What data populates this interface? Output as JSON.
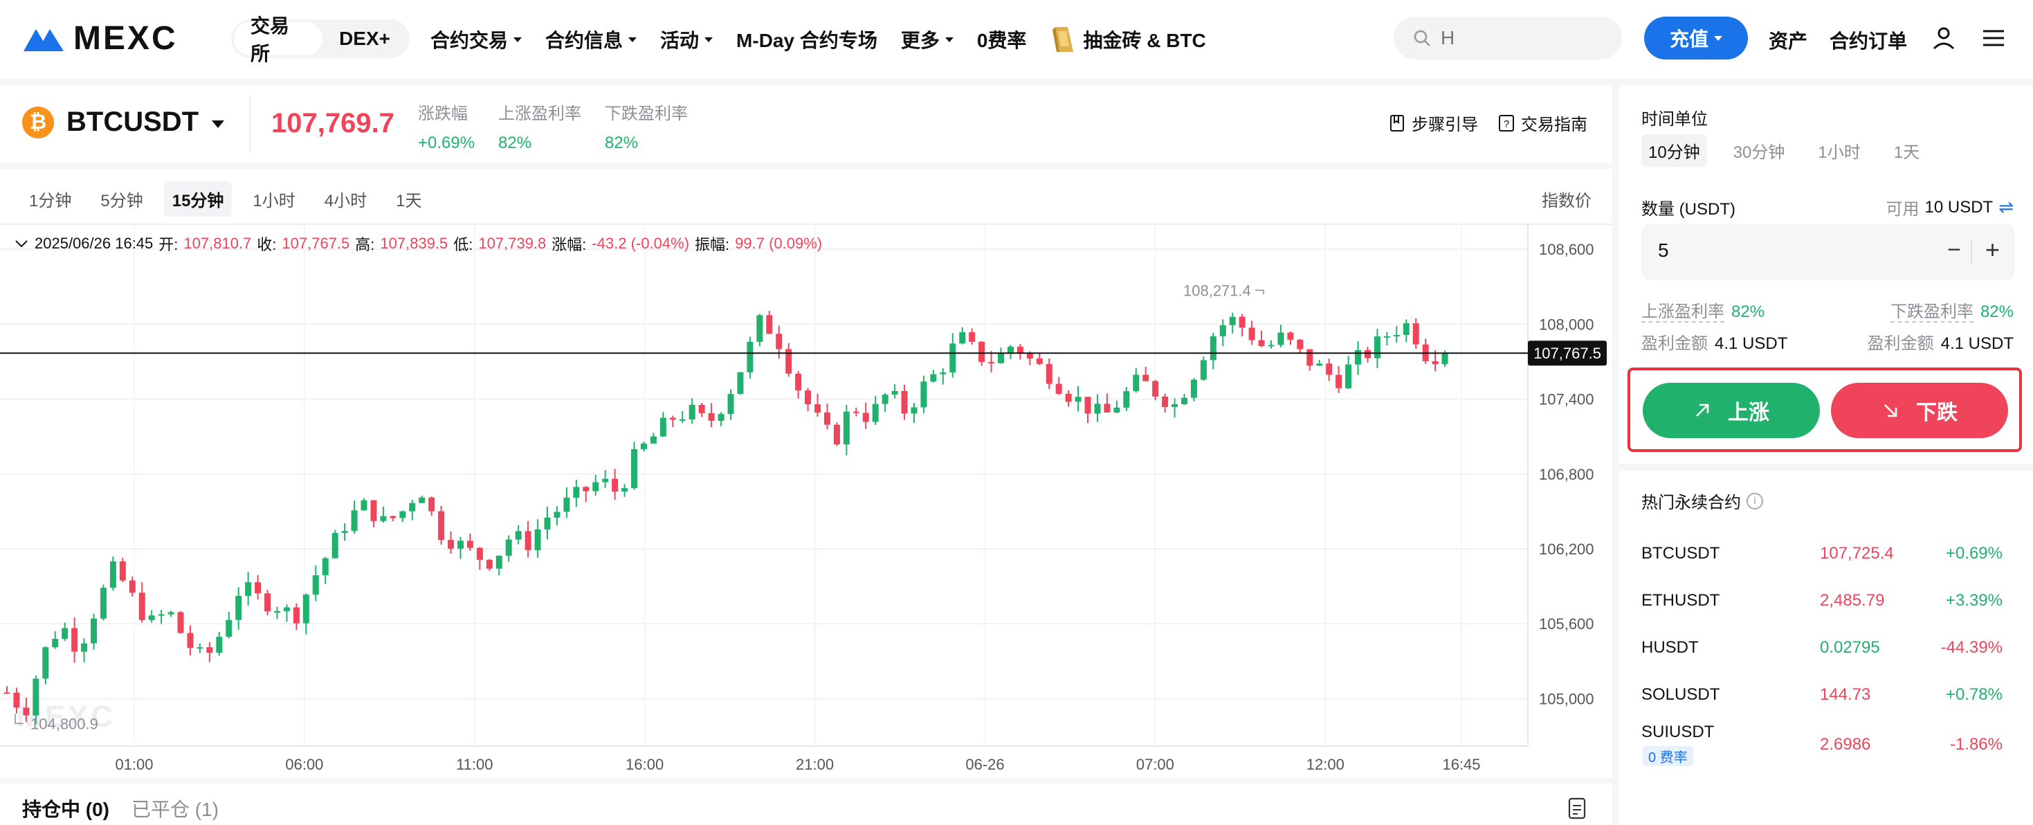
{
  "header": {
    "logo_text": "MEXC",
    "segments": [
      {
        "label": "交易所",
        "active": true
      },
      {
        "label": "DEX+",
        "active": false
      }
    ],
    "nav": [
      {
        "label": "合约交易",
        "dropdown": true
      },
      {
        "label": "合约信息",
        "dropdown": true
      },
      {
        "label": "活动",
        "dropdown": true
      },
      {
        "label": "M-Day 合约专场",
        "dropdown": false
      },
      {
        "label": "更多",
        "dropdown": true
      },
      {
        "label": "0费率",
        "dropdown": false
      },
      {
        "label": "抽金砖 & BTC",
        "dropdown": false,
        "icon": "gold-bar-icon"
      }
    ],
    "search_placeholder": "H",
    "deposit_label": "充值",
    "assets_label": "资产",
    "orders_label": "合约订单"
  },
  "symbol": {
    "name": "BTCUSDT",
    "coin_glyph": "₿",
    "price": "107,769.7",
    "stats": [
      {
        "label": "涨跌幅",
        "value": "+0.69%"
      },
      {
        "label": "上涨盈利率",
        "value": "82%"
      },
      {
        "label": "下跌盈利率",
        "value": "82%"
      }
    ],
    "guide_label": "步骤引导",
    "trade_guide_label": "交易指南"
  },
  "chart": {
    "intervals": [
      {
        "label": "1分钟",
        "active": false
      },
      {
        "label": "5分钟",
        "active": false
      },
      {
        "label": "15分钟",
        "active": true
      },
      {
        "label": "1小时",
        "active": false
      },
      {
        "label": "4小时",
        "active": false
      },
      {
        "label": "1天",
        "active": false
      }
    ],
    "index_price_label": "指数价",
    "ohlc": {
      "date": "2025/06/26 16:45",
      "open_label": "开:",
      "open": "107,810.7",
      "close_label": "收:",
      "close": "107,767.5",
      "high_label": "高:",
      "high": "107,839.5",
      "low_label": "低:",
      "low": "107,739.8",
      "change_label": "涨幅:",
      "change": "-43.2 (-0.04%)",
      "amp_label": "振幅:",
      "amp": "99.7 (0.09%)"
    },
    "watermark": "MEXC"
  },
  "chart_data": {
    "type": "candlestick",
    "y_ticks": [
      "108,600",
      "108,000",
      "107,400",
      "106,800",
      "106,200",
      "105,600",
      "105,000"
    ],
    "y_tick_values": [
      108600,
      108000,
      107400,
      106800,
      106200,
      105600,
      105000
    ],
    "ylim": [
      104620,
      108800
    ],
    "x_ticks": [
      "01:00",
      "06:00",
      "11:00",
      "16:00",
      "21:00",
      "06-26",
      "07:00",
      "12:00",
      "16:45"
    ],
    "current_price": "107,767.5",
    "current_price_value": 107767.5,
    "high_annotation": "108,271.4",
    "high_value": 108271.4,
    "low_annotation": "104,800.9",
    "low_value": 104800.9,
    "close_path": [
      105050,
      104900,
      105350,
      105600,
      105400,
      105750,
      106050,
      105800,
      105600,
      105700,
      105450,
      105300,
      105550,
      105900,
      105800,
      105750,
      105650,
      105950,
      106200,
      106450,
      106550,
      106400,
      106500,
      106700,
      106350,
      106250,
      106150,
      106100,
      106300,
      106250,
      106450,
      106550,
      106650,
      106750,
      106650,
      106950,
      107100,
      107250,
      107300,
      107200,
      107400,
      107700,
      108050,
      107850,
      107500,
      107250,
      107050,
      107350,
      107250,
      107450,
      107300,
      107500,
      107650,
      107900,
      107750,
      107700,
      107850,
      107700,
      107600,
      107450,
      107350,
      107250,
      107400,
      107550,
      107450,
      107350,
      107600,
      107900,
      108050,
      107950,
      107800,
      107900,
      107750,
      107650,
      107550,
      107700,
      107800,
      107950,
      108000,
      107750,
      107767.5
    ],
    "candle_count": 150
  },
  "positions": {
    "tabs": [
      {
        "label": "持仓中 (0)",
        "active": true
      },
      {
        "label": "已平仓 (1)",
        "active": false
      }
    ]
  },
  "panel": {
    "time_unit_label": "时间单位",
    "time_units": [
      {
        "label": "10分钟",
        "active": true
      },
      {
        "label": "30分钟",
        "active": false
      },
      {
        "label": "1小时",
        "active": false
      },
      {
        "label": "1天",
        "active": false
      }
    ],
    "qty_label": "数量 (USDT)",
    "avail_label": "可用",
    "avail_value": "10 USDT",
    "qty_value": "5",
    "up_rate_label": "上涨盈利率",
    "up_rate": "82%",
    "down_rate_label": "下跌盈利率",
    "down_rate": "82%",
    "up_profit_label": "盈利金额",
    "up_profit": "4.1 USDT",
    "down_profit_label": "盈利金额",
    "down_profit": "4.1 USDT",
    "up_button": "上涨",
    "down_button": "下跌"
  },
  "hot": {
    "title": "热门永续合约",
    "rows": [
      {
        "name": "BTCUSDT",
        "price": "107,725.4",
        "change": "+0.69%",
        "price_dir": "down",
        "dir": "up"
      },
      {
        "name": "ETHUSDT",
        "price": "2,485.79",
        "change": "+3.39%",
        "price_dir": "down",
        "dir": "up"
      },
      {
        "name": "HUSDT",
        "price": "0.02795",
        "change": "-44.39%",
        "price_dir": "up",
        "dir": "down"
      },
      {
        "name": "SOLUSDT",
        "price": "144.73",
        "change": "+0.78%",
        "price_dir": "down",
        "dir": "up"
      },
      {
        "name": "SUIUSDT",
        "price": "2.6986",
        "change": "-1.86%",
        "price_dir": "down",
        "dir": "down",
        "badge": "0 费率"
      }
    ]
  },
  "colors": {
    "up": "#20b26c",
    "down": "#f0445a",
    "accent": "#1a73e8"
  }
}
